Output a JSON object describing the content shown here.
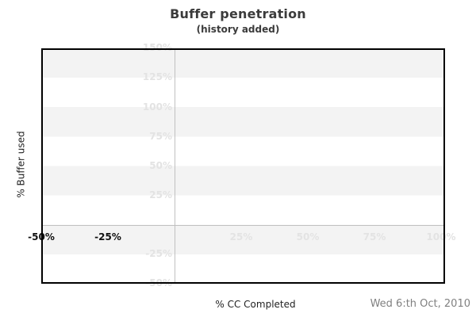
{
  "colors": {
    "background": "#ffffff",
    "stripe": "#f3f3f3",
    "grid_line": "#c0c0c0",
    "plot_border": "#000000",
    "faint_tick": "#e3e3e3",
    "dark_tick": "#111111",
    "title_text": "#3b3b3b",
    "axis_title_text": "#222222",
    "date_text": "#808080"
  },
  "chart_data": {
    "type": "line",
    "title": "Buffer penetration",
    "subtitle": "(history added)",
    "xlabel": "% CC Completed",
    "ylabel": "% Buffer used",
    "footer_date": "Wed 6:th Oct, 2010",
    "xlim": [
      -50,
      101
    ],
    "ylim": [
      -50,
      150
    ],
    "grid": {
      "horizontal_stripes": true,
      "stripe_band_percent": 25,
      "vertical_gridline_at_x": 0,
      "horizontal_gridline_at_y": 0,
      "legend": "none"
    },
    "x_ticks": [
      {
        "value": -50,
        "label": "-50%",
        "style": "dark"
      },
      {
        "value": -25,
        "label": "-25%",
        "style": "dark"
      },
      {
        "value": 25,
        "label": "25%",
        "style": "faint"
      },
      {
        "value": 50,
        "label": "50%",
        "style": "faint"
      },
      {
        "value": 75,
        "label": "75%",
        "style": "faint"
      },
      {
        "value": 100,
        "label": "100%",
        "style": "faint"
      }
    ],
    "y_ticks": [
      {
        "value": 150,
        "label": "150%",
        "style": "faint"
      },
      {
        "value": 125,
        "label": "125%",
        "style": "faint"
      },
      {
        "value": 100,
        "label": "100%",
        "style": "faint"
      },
      {
        "value": 75,
        "label": "75%",
        "style": "faint"
      },
      {
        "value": 50,
        "label": "50%",
        "style": "faint"
      },
      {
        "value": 25,
        "label": "25%",
        "style": "faint"
      },
      {
        "value": -25,
        "label": "-25%",
        "style": "faint"
      },
      {
        "value": -50,
        "label": "-50%",
        "style": "faint"
      }
    ],
    "series": []
  }
}
